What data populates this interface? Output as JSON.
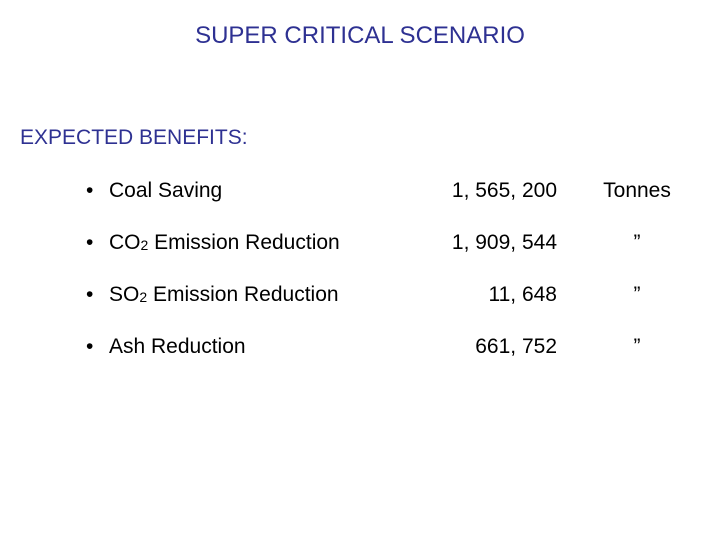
{
  "header": {
    "title": "SUPER CRITICAL SCENARIO"
  },
  "section": {
    "heading": "EXPECTED BENEFITS:",
    "bullet": "•",
    "items": [
      {
        "label": "Coal Saving",
        "value": "1, 565, 200",
        "unit": "Tonnes"
      },
      {
        "label": "CO",
        "subscript": "2",
        "label_rest": " Emission Reduction",
        "value": "1, 909, 544",
        "unit": "”"
      },
      {
        "label": "SO",
        "subscript": "2",
        "label_rest": " Emission Reduction",
        "value": "11, 648",
        "unit": "”"
      },
      {
        "label": "Ash Reduction",
        "value": "661, 752",
        "unit": "”"
      }
    ]
  }
}
